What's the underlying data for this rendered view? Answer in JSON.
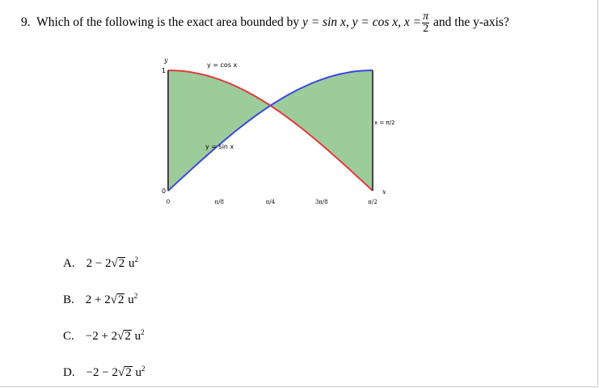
{
  "question": {
    "number": "9.",
    "text_before": "Which of the following is the exact area bounded by",
    "eq1": "y = sin x,",
    "eq2": "y = cos x,",
    "eq3_left": "x =",
    "frac_num": "π",
    "frac_den": "2",
    "text_after": "and the y-axis?"
  },
  "chart_data": {
    "type": "area",
    "series": [
      {
        "name": "y = sin x",
        "color": "#3a48e0"
      },
      {
        "name": "y = cos x",
        "color": "#e03a3a"
      }
    ],
    "fill_color": "#9dcc9b",
    "xlim": [
      0,
      1.5708
    ],
    "ylim": [
      0,
      1
    ],
    "x_ticks": [
      "0",
      "π/8",
      "π/4",
      "3π/8",
      "π/2"
    ],
    "y_ticks": [
      "0",
      "1"
    ],
    "xlabel": "x",
    "ylabel": "y",
    "annotations": {
      "cos_label": "y = cos x",
      "sin_label": "y = sin x",
      "vline_label": "x = π/2"
    }
  },
  "options": [
    {
      "letter": "A.",
      "pre": "2 − 2",
      "rad": "2",
      "unit": "u",
      "exp": "2"
    },
    {
      "letter": "B.",
      "pre": "2 + 2",
      "rad": "2",
      "unit": "u",
      "exp": "2"
    },
    {
      "letter": "C.",
      "pre": "−2 + 2",
      "rad": "2",
      "unit": "u",
      "exp": "2"
    },
    {
      "letter": "D.",
      "pre": "−2 − 2",
      "rad": "2",
      "unit": "u",
      "exp": "2"
    }
  ]
}
